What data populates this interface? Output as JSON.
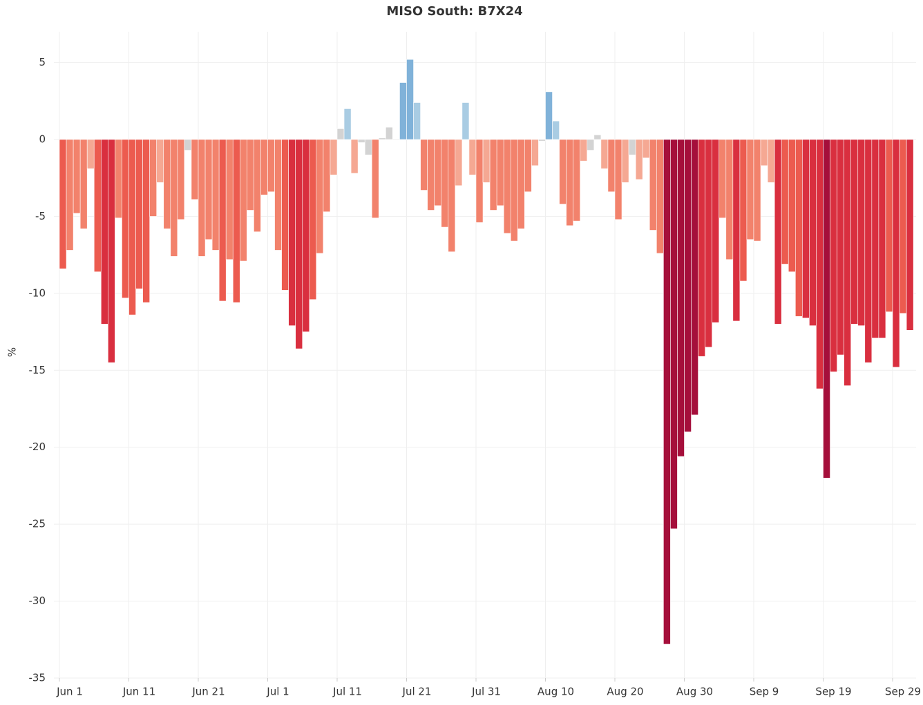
{
  "chart_data": {
    "type": "bar",
    "title": "MISO South: B7X24",
    "y_label": "%",
    "categories": [
      "Jun 1",
      null,
      null,
      null,
      null,
      null,
      null,
      null,
      null,
      null,
      "Jun 11",
      null,
      null,
      null,
      null,
      null,
      null,
      null,
      null,
      null,
      "Jun 21",
      null,
      null,
      null,
      null,
      null,
      null,
      null,
      null,
      null,
      "Jul 1",
      null,
      null,
      null,
      null,
      null,
      null,
      null,
      null,
      null,
      "Jul 11",
      null,
      null,
      null,
      null,
      null,
      null,
      null,
      null,
      null,
      "Jul 21",
      null,
      null,
      null,
      null,
      null,
      null,
      null,
      null,
      null,
      "Jul 31",
      null,
      null,
      null,
      null,
      null,
      null,
      null,
      null,
      null,
      "Aug 10",
      null,
      null,
      null,
      null,
      null,
      null,
      null,
      null,
      null,
      "Aug 20",
      null,
      null,
      null,
      null,
      null,
      null,
      null,
      null,
      null,
      "Aug 30",
      null,
      null,
      null,
      null,
      null,
      null,
      null,
      null,
      null,
      "Sep 9",
      null,
      null,
      null,
      null,
      null,
      null,
      null,
      null,
      null,
      "Sep 19",
      null,
      null,
      null,
      null,
      null,
      null,
      null,
      null,
      null,
      "Sep 29",
      null,
      null
    ],
    "values": [
      -8.4,
      -7.2,
      -4.8,
      -5.8,
      -1.9,
      -8.6,
      -12.0,
      -14.5,
      -5.1,
      -10.3,
      -11.4,
      -9.7,
      -10.6,
      -5.0,
      -2.8,
      -5.8,
      -7.6,
      -5.2,
      -0.7,
      -3.9,
      -7.6,
      -6.5,
      -7.2,
      -10.5,
      -7.8,
      -10.6,
      -7.9,
      -4.6,
      -6.0,
      -3.6,
      -3.4,
      -7.2,
      -9.8,
      -12.1,
      -13.6,
      -12.5,
      -10.4,
      -7.4,
      -4.7,
      -2.3,
      0.7,
      2.0,
      -2.2,
      -0.2,
      -1.0,
      -5.1,
      0.1,
      0.8,
      0,
      3.7,
      5.2,
      2.4,
      -3.3,
      -4.6,
      -4.3,
      -5.7,
      -7.3,
      -3.0,
      2.4,
      -2.3,
      -5.4,
      -2.8,
      -4.6,
      -4.3,
      -6.1,
      -6.6,
      -5.8,
      -3.4,
      -1.7,
      -0.1,
      3.1,
      1.2,
      -4.2,
      -5.6,
      -5.3,
      -1.4,
      -0.7,
      0.3,
      -1.9,
      -3.4,
      -5.2,
      -2.8,
      -1.0,
      -2.6,
      -1.2,
      -5.9,
      -7.4,
      -32.8,
      -25.3,
      -20.6,
      -19.0,
      -17.9,
      -14.1,
      -13.5,
      -11.9,
      -5.1,
      -7.8,
      -11.8,
      -9.2,
      -6.5,
      -6.6,
      -1.7,
      -2.8,
      -12.0,
      -8.1,
      -8.6,
      -11.5,
      -11.6,
      -12.1,
      -16.2,
      -22.0,
      -15.1,
      -14.0,
      -16.0,
      -12.0,
      -12.1,
      -14.5,
      -12.9,
      -12.9,
      -11.2,
      -14.8,
      -11.3,
      -12.4
    ],
    "color_thresholds": [
      -17,
      -11.5,
      -8,
      -3,
      -1,
      1,
      3
    ],
    "colors": [
      "#a50f3b",
      "#d92f3f",
      "#ec5b4f",
      "#f2826c",
      "#f5a893",
      "#d3d3d3",
      "#a9cce3",
      "#80b2d9"
    ],
    "ylim": [
      -35,
      7
    ],
    "yticks": [
      -35,
      -30,
      -25,
      -20,
      -15,
      -10,
      -5,
      0,
      5
    ],
    "grid": true
  }
}
